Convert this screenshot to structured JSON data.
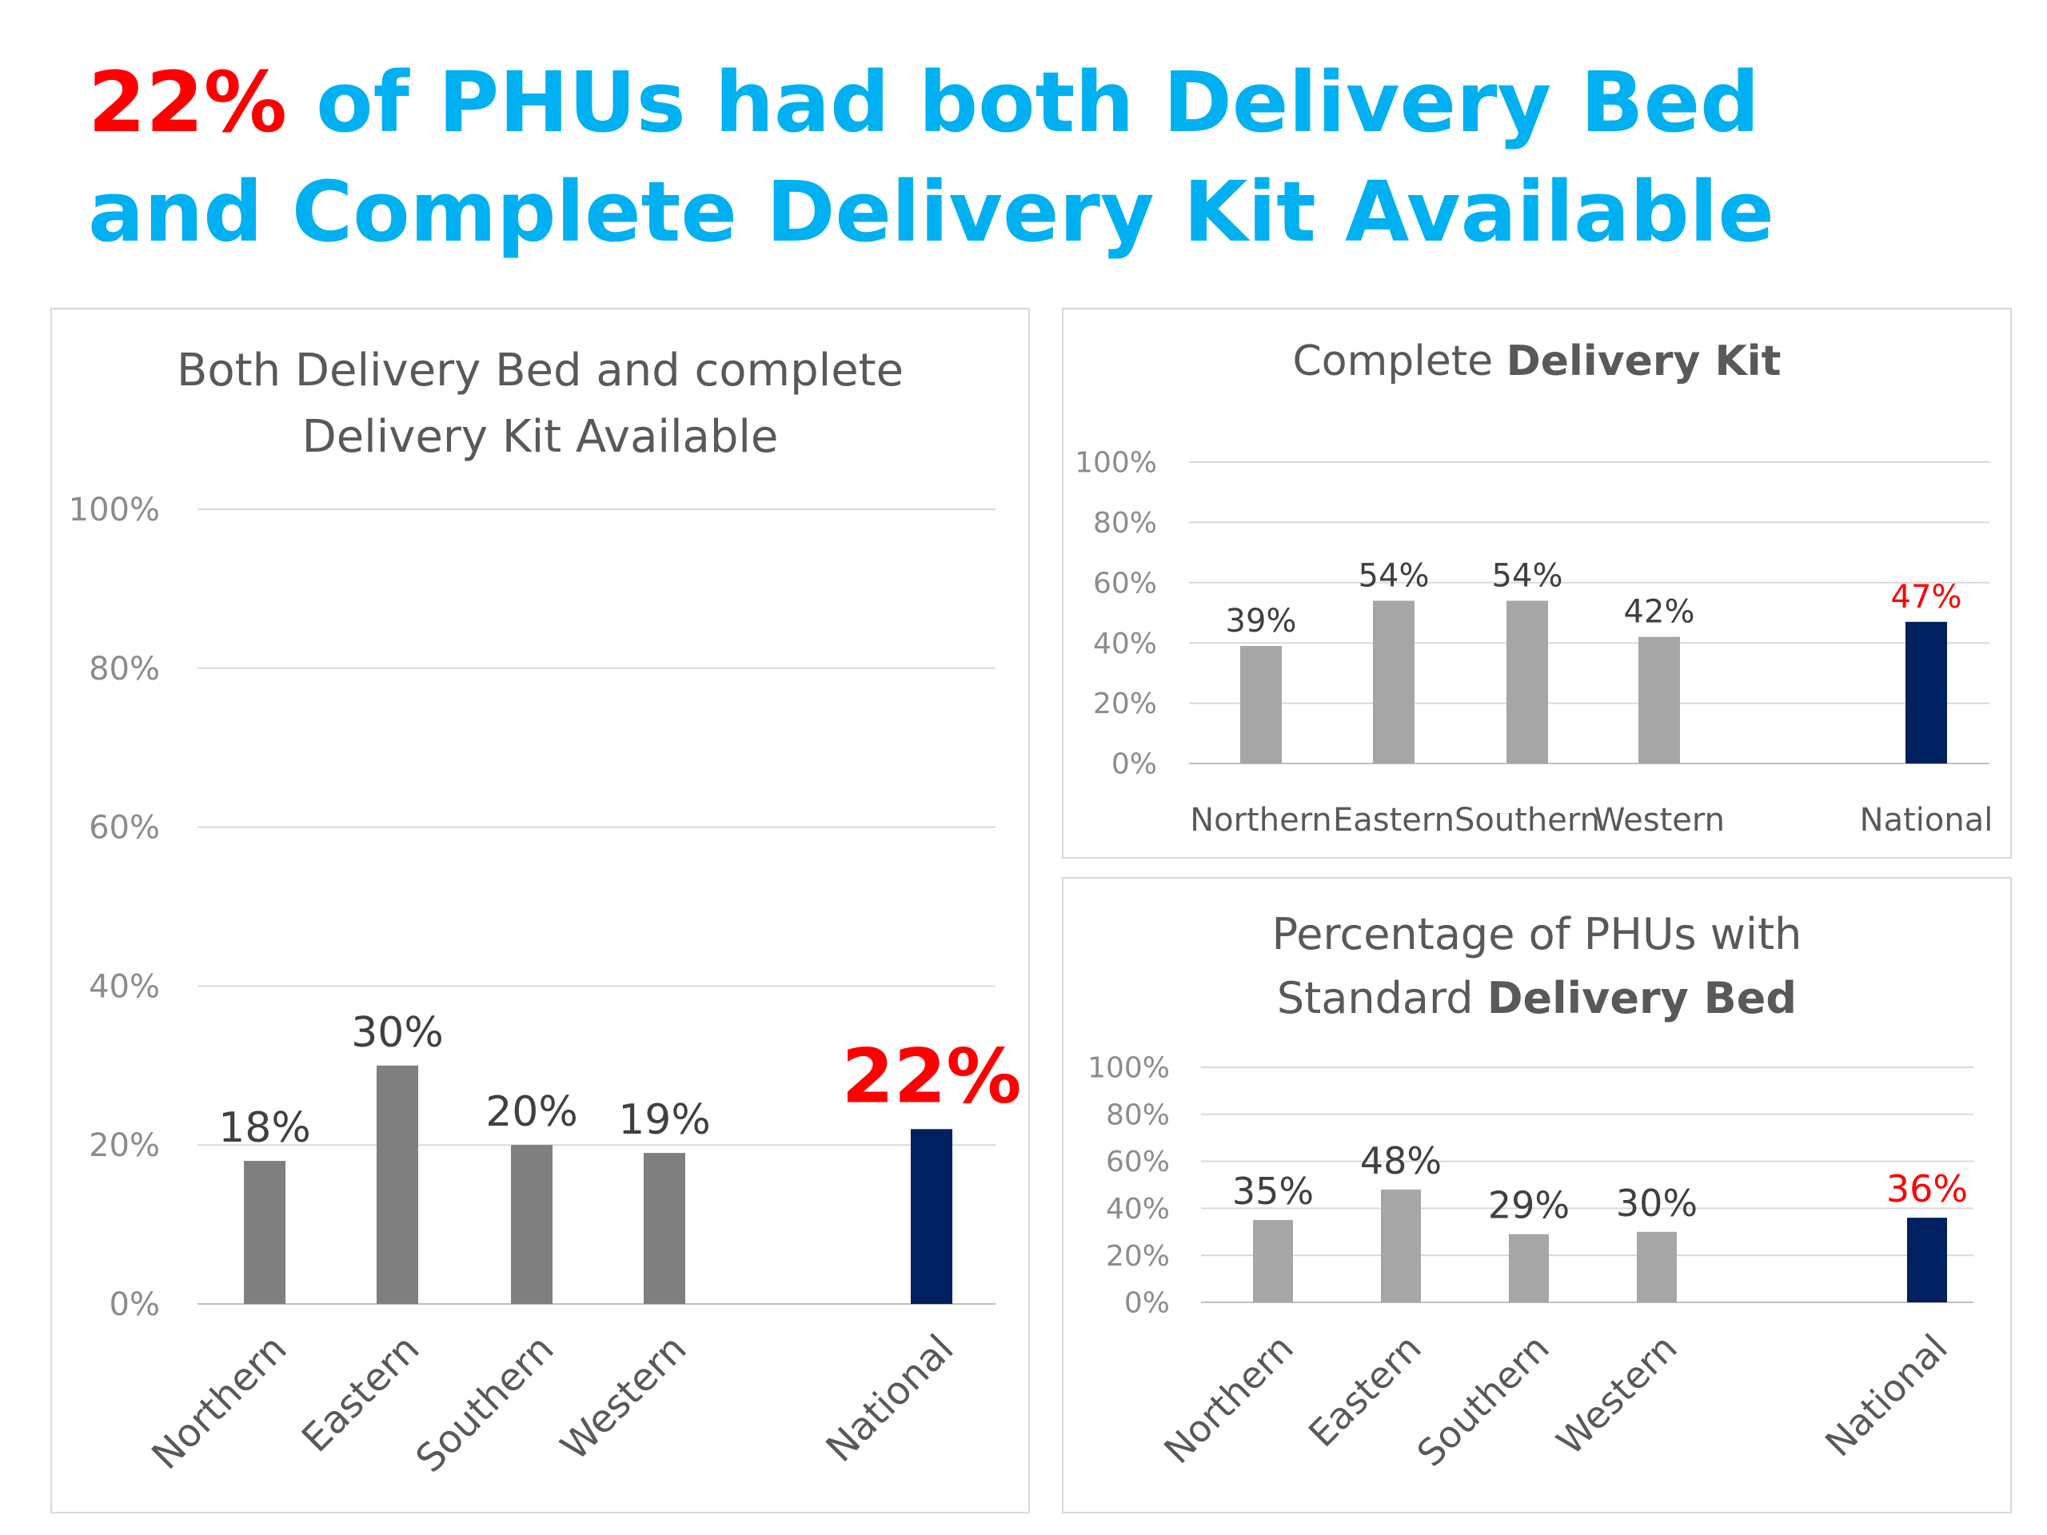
{
  "slide": {
    "title_highlight": "22%",
    "title_rest": " of PHUs had both Delivery Bed and Complete Delivery Kit Available",
    "colors": {
      "highlight": "#ff0000",
      "title": "#00b0f0"
    }
  },
  "chart_data": [
    {
      "type": "bar",
      "title": "Both Delivery Bed and complete Delivery Kit Available",
      "categories": [
        "Northern",
        "Eastern",
        "Southern",
        "Western",
        "National"
      ],
      "values": [
        18,
        30,
        20,
        19,
        22
      ],
      "data_labels": [
        "18%",
        "30%",
        "20%",
        "19%",
        "22%"
      ],
      "yticks": [
        "0%",
        "20%",
        "40%",
        "60%",
        "80%",
        "100%"
      ],
      "ylim": [
        0,
        100
      ],
      "grid": true,
      "xlabel": "",
      "ylabel": "",
      "bar_colors": [
        "#7f7f7f",
        "#7f7f7f",
        "#7f7f7f",
        "#7f7f7f",
        "#002060"
      ],
      "label_colors": [
        "#404040",
        "#404040",
        "#404040",
        "#404040",
        "#ff0000"
      ]
    },
    {
      "type": "bar",
      "title_parts": [
        "Complete ",
        "Delivery Kit"
      ],
      "categories": [
        "Northern",
        "Eastern",
        "Southern",
        "Western",
        "National"
      ],
      "values": [
        39,
        54,
        54,
        42,
        47
      ],
      "data_labels": [
        "39%",
        "54%",
        "54%",
        "42%",
        "47%"
      ],
      "yticks": [
        "0%",
        "20%",
        "40%",
        "60%",
        "80%",
        "100%"
      ],
      "ylim": [
        0,
        100
      ],
      "grid": true,
      "xlabel": "",
      "ylabel": "",
      "bar_colors": [
        "#a6a6a6",
        "#a6a6a6",
        "#a6a6a6",
        "#a6a6a6",
        "#002060"
      ],
      "label_colors": [
        "#404040",
        "#404040",
        "#404040",
        "#404040",
        "#ff0000"
      ]
    },
    {
      "type": "bar",
      "title_parts": [
        "Percentage of PHUs with Standard ",
        "Delivery Bed"
      ],
      "categories": [
        "Northern",
        "Eastern",
        "Southern",
        "Western",
        "National"
      ],
      "values": [
        35,
        48,
        29,
        30,
        36
      ],
      "data_labels": [
        "35%",
        "48%",
        "29%",
        "30%",
        "36%"
      ],
      "yticks": [
        "0%",
        "20%",
        "40%",
        "60%",
        "80%",
        "100%"
      ],
      "ylim": [
        0,
        100
      ],
      "grid": true,
      "xlabel": "",
      "ylabel": "",
      "bar_colors": [
        "#a6a6a6",
        "#a6a6a6",
        "#a6a6a6",
        "#a6a6a6",
        "#002060"
      ],
      "label_colors": [
        "#404040",
        "#404040",
        "#404040",
        "#404040",
        "#ff0000"
      ]
    }
  ]
}
